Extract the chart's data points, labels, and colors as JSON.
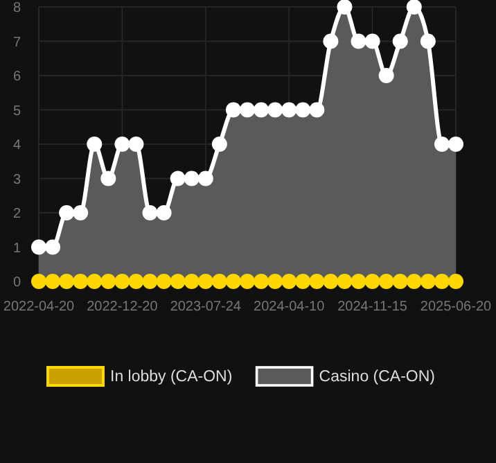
{
  "chart_data": {
    "type": "area",
    "categories": [
      "2022-04-20",
      null,
      null,
      null,
      null,
      null,
      "2022-12-20",
      null,
      null,
      null,
      null,
      null,
      "2023-07-24",
      null,
      null,
      null,
      null,
      null,
      "2024-04-10",
      null,
      null,
      null,
      null,
      null,
      "2024-11-15",
      null,
      null,
      null,
      null,
      null,
      "2025-06-20"
    ],
    "series": [
      {
        "name": "In lobby (CA-ON)",
        "type": "line",
        "color": "#ffd700",
        "values": [
          0,
          0,
          0,
          0,
          0,
          0,
          0,
          0,
          0,
          0,
          0,
          0,
          0,
          0,
          0,
          0,
          0,
          0,
          0,
          0,
          0,
          0,
          0,
          0,
          0,
          0,
          0,
          0,
          0,
          0,
          0
        ]
      },
      {
        "name": "Casino (CA-ON)",
        "color": "#ffffff",
        "values": [
          1,
          1,
          2,
          2,
          4,
          3,
          4,
          4,
          2,
          2,
          3,
          3,
          3,
          4,
          5,
          5,
          5,
          5,
          5,
          5,
          5,
          7,
          8,
          7,
          7,
          6,
          7,
          8,
          7,
          4,
          4
        ]
      }
    ],
    "ylim": [
      0,
      8
    ],
    "yticks": [
      0,
      1,
      2,
      3,
      4,
      5,
      6,
      7,
      8
    ],
    "grid": true,
    "legend": "bottom",
    "marker": "circle"
  }
}
